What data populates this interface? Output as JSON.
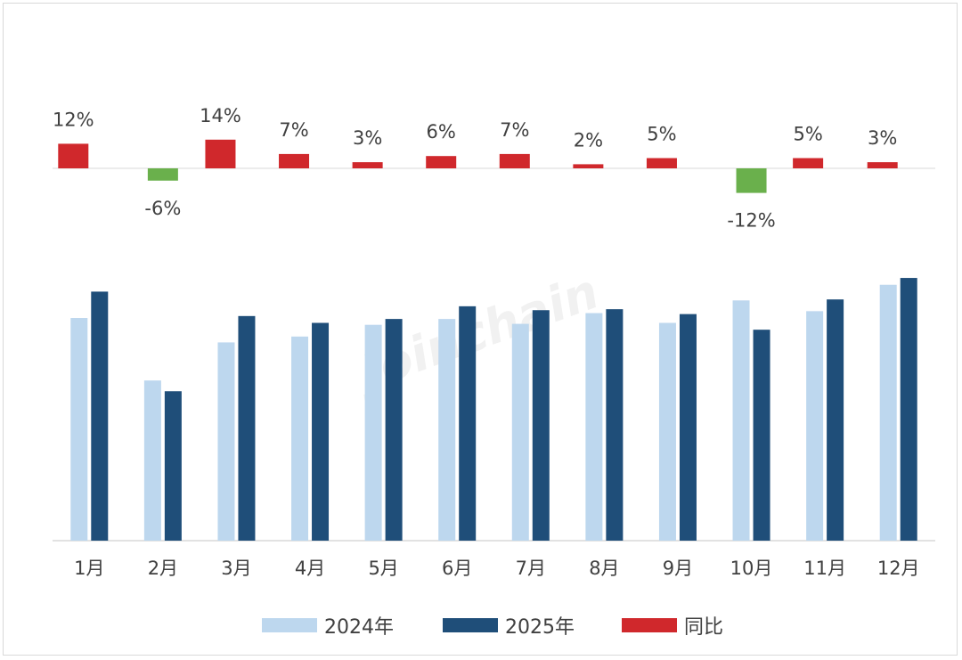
{
  "chart_data": {
    "type": "bar",
    "title": "",
    "categories": [
      "1月",
      "2月",
      "3月",
      "4月",
      "5月",
      "6月",
      "7月",
      "8月",
      "9月",
      "10月",
      "11月",
      "12月"
    ],
    "series": [
      {
        "name": "2024年",
        "values": [
          228,
          164,
          203,
          209,
          221,
          227,
          222,
          233,
          223,
          246,
          235,
          262
        ],
        "color": "#bdd7ee"
      },
      {
        "name": "2025年",
        "values": [
          255,
          153,
          230,
          223,
          227,
          240,
          236,
          237,
          232,
          216,
          247,
          269
        ],
        "color": "#1f4e79"
      }
    ],
    "yoy": {
      "name": "同比",
      "values": [
        12,
        -6,
        14,
        7,
        3,
        6,
        7,
        2,
        5,
        -12,
        5,
        3
      ],
      "labels": [
        "12%",
        "-6%",
        "14%",
        "7%",
        "3%",
        "6%",
        "7%",
        "2%",
        "5%",
        "-12%",
        "5%",
        "3%"
      ],
      "positive_color": "#d0282c",
      "negative_color": "#6ab04c"
    },
    "ylim": [
      0,
      280
    ],
    "grid": false,
    "legend_position": "bottom-center",
    "watermark": "Joinchain"
  }
}
